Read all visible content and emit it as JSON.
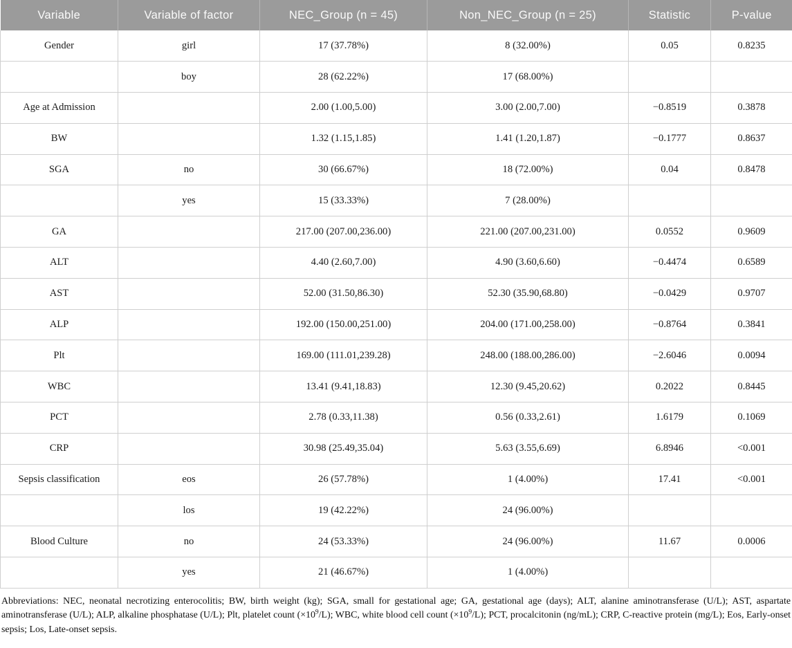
{
  "table": {
    "columns": [
      "Variable",
      "Variable of factor",
      "NEC_Group (n = 45)",
      "Non_NEC_Group (n = 25)",
      "Statistic",
      "P-value"
    ],
    "rows": [
      [
        "Gender",
        "girl",
        "17 (37.78%)",
        "8 (32.00%)",
        "0.05",
        "0.8235"
      ],
      [
        "",
        "boy",
        "28 (62.22%)",
        "17 (68.00%)",
        "",
        ""
      ],
      [
        "Age at Admission",
        "",
        "2.00 (1.00,5.00)",
        "3.00 (2.00,7.00)",
        "−0.8519",
        "0.3878"
      ],
      [
        "BW",
        "",
        "1.32 (1.15,1.85)",
        "1.41 (1.20,1.87)",
        "−0.1777",
        "0.8637"
      ],
      [
        "SGA",
        "no",
        "30 (66.67%)",
        "18 (72.00%)",
        "0.04",
        "0.8478"
      ],
      [
        "",
        "yes",
        "15 (33.33%)",
        "7 (28.00%)",
        "",
        ""
      ],
      [
        "GA",
        "",
        "217.00 (207.00,236.00)",
        "221.00 (207.00,231.00)",
        "0.0552",
        "0.9609"
      ],
      [
        "ALT",
        "",
        "4.40 (2.60,7.00)",
        "4.90 (3.60,6.60)",
        "−0.4474",
        "0.6589"
      ],
      [
        "AST",
        "",
        "52.00 (31.50,86.30)",
        "52.30 (35.90,68.80)",
        "−0.0429",
        "0.9707"
      ],
      [
        "ALP",
        "",
        "192.00 (150.00,251.00)",
        "204.00 (171.00,258.00)",
        "−0.8764",
        "0.3841"
      ],
      [
        "Plt",
        "",
        "169.00 (111.01,239.28)",
        "248.00 (188.00,286.00)",
        "−2.6046",
        "0.0094"
      ],
      [
        "WBC",
        "",
        "13.41 (9.41,18.83)",
        "12.30 (9.45,20.62)",
        "0.2022",
        "0.8445"
      ],
      [
        "PCT",
        "",
        "2.78 (0.33,11.38)",
        "0.56 (0.33,2.61)",
        "1.6179",
        "0.1069"
      ],
      [
        "CRP",
        "",
        "30.98 (25.49,35.04)",
        "5.63 (3.55,6.69)",
        "6.8946",
        "<0.001"
      ],
      [
        "Sepsis classification",
        "eos",
        "26 (57.78%)",
        "1 (4.00%)",
        "17.41",
        "<0.001"
      ],
      [
        "",
        "los",
        "19 (42.22%)",
        "24 (96.00%)",
        "",
        ""
      ],
      [
        "Blood Culture",
        "no",
        "24 (53.33%)",
        "24 (96.00%)",
        "11.67",
        "0.0006"
      ],
      [
        "",
        "yes",
        "21 (46.67%)",
        "1 (4.00%)",
        "",
        ""
      ]
    ]
  },
  "footnote": {
    "part1": "Abbreviations: NEC, neonatal necrotizing enterocolitis; BW, birth weight (kg); SGA, small for gestational age; GA, gestational age (days); ALT, alanine aminotransferase (U/L); AST, aspartate aminotransferase (U/L); ALP, alkaline phosphatase (U/L); Plt, platelet count (×10",
    "sup1": "9",
    "part2": "/L); WBC, white blood cell count (×10",
    "sup2": "9",
    "part3": "/L); PCT, procalcitonin (ng/mL); CRP, C-reactive protein (mg/L); Eos, Early-onset sepsis; Los, Late-onset sepsis."
  },
  "colors": {
    "header_bg": "#9b9b9b",
    "header_text": "#fafafa",
    "body_border": "#cfcfcf"
  }
}
